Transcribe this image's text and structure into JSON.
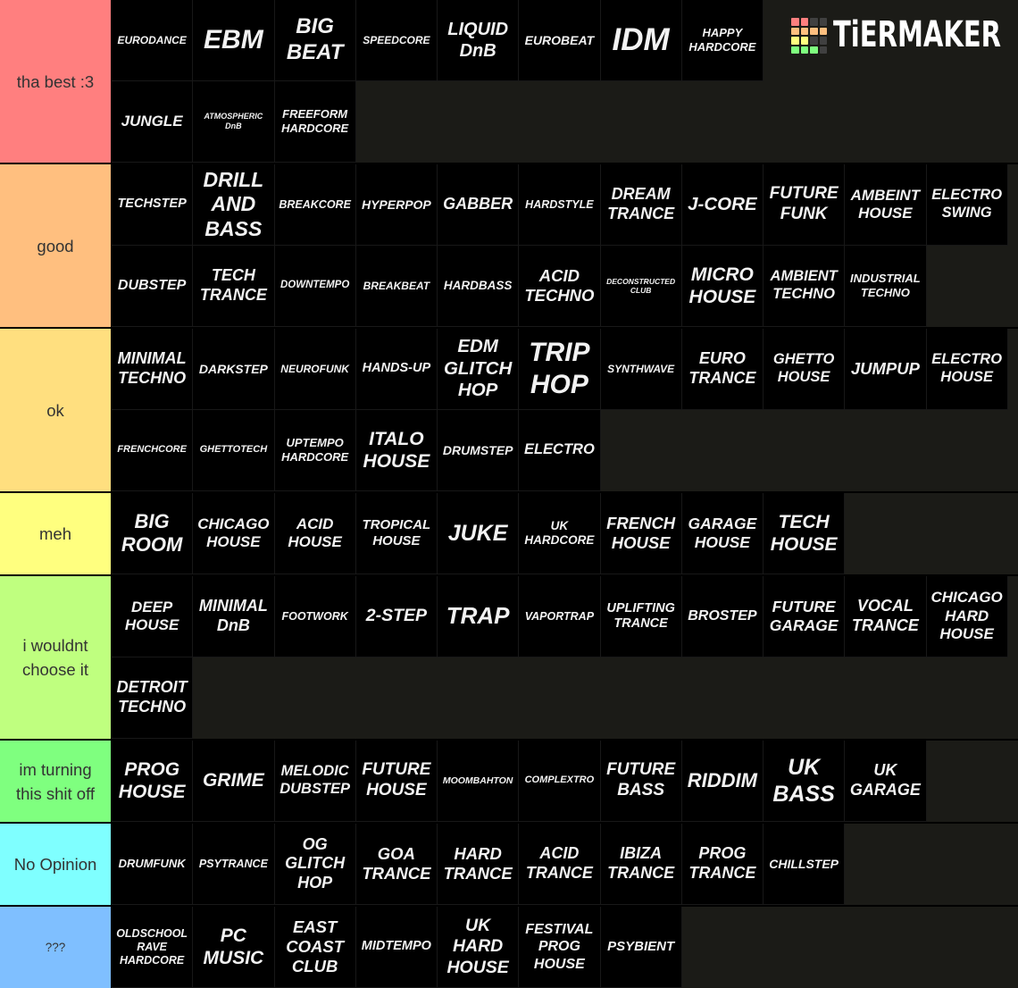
{
  "logo": {
    "text": "TiERMAKER",
    "squares": [
      "#ff7f7f",
      "#ff7f7f",
      "#404040",
      "#404040",
      "#ffbf7f",
      "#ffbf7f",
      "#ffbf7f",
      "#ffbf7f",
      "#ffff7f",
      "#ffff7f",
      "#404040",
      "#404040",
      "#7fff7f",
      "#7fff7f",
      "#7fff7f",
      "#404040"
    ]
  },
  "tiers": [
    {
      "label": "tha best :3",
      "color": "#ff7f7f",
      "items": [
        "EURODANCE",
        "EBM",
        "BIG\nBEAT",
        "SPEEDCORE",
        "LIQUID\nDnB",
        "EUROBEAT",
        "IDM",
        "HAPPY\nHARDCORE",
        "JUNGLE",
        "ATMOSPHERIC\nDnB",
        "FREEFORM\nHARDCORE"
      ]
    },
    {
      "label": "good",
      "color": "#ffbf7f",
      "items": [
        "TECHSTEP",
        "DRILL\nAND\nBASS",
        "BREAKCORE",
        "HYPERPOP",
        "GABBER",
        "HARDSTYLE",
        "DREAM\nTRANCE",
        "J-CORE",
        "FUTURE\nFUNK",
        "AMBEINT\nHOUSE",
        "ELECTRO\nSWING",
        "DUBSTEP",
        "TECH\nTRANCE",
        "DOWNTEMPO",
        "BREAKBEAT",
        "HARDBASS",
        "ACID\nTECHNO",
        "DECONSTRUCTED\nCLUB",
        "MICRO\nHOUSE",
        "AMBIENT\nTECHNO",
        "INDUSTRIAL\nTECHNO"
      ]
    },
    {
      "label": "ok",
      "color": "#ffdf7f",
      "items": [
        "MINIMAL\nTECHNO",
        "DARKSTEP",
        "NEUROFUNK",
        "HANDS-UP",
        "EDM\nGLITCH\nHOP",
        "TRIP\nHOP",
        "SYNTHWAVE",
        "EURO\nTRANCE",
        "GHETTO\nHOUSE",
        "JUMPUP",
        "ELECTRO\nHOUSE",
        "FRENCHCORE",
        "GHETTOTECH",
        "UPTEMPO\nHARDCORE",
        "ITALO\nHOUSE",
        "DRUMSTEP",
        "ELECTRO"
      ]
    },
    {
      "label": "meh",
      "color": "#ffff7f",
      "items": [
        "BIG\nROOM",
        "CHICAGO\nHOUSE",
        "ACID\nHOUSE",
        "TROPICAL\nHOUSE",
        "JUKE",
        "UK\nHARDCORE",
        "FRENCH\nHOUSE",
        "GARAGE\nHOUSE",
        "TECH\nHOUSE"
      ]
    },
    {
      "label": "i wouldnt choose it",
      "color": "#bfff7f",
      "items": [
        "DEEP\nHOUSE",
        "MINIMAL\nDnB",
        "FOOTWORK",
        "2-STEP",
        "TRAP",
        "VAPORTRAP",
        "UPLIFTING\nTRANCE",
        "BROSTEP",
        "FUTURE\nGARAGE",
        "VOCAL\nTRANCE",
        "CHICAGO\nHARD\nHOUSE",
        "DETROIT\nTECHNO"
      ]
    },
    {
      "label": "im turning this shit off",
      "color": "#7fff7f",
      "items": [
        "PROG\nHOUSE",
        "GRIME",
        "MELODIC\nDUBSTEP",
        "FUTURE\nHOUSE",
        "MOOMBAHTON",
        "COMPLEXTRO",
        "FUTURE\nBASS",
        "RIDDIM",
        "UK\nBASS",
        "UK\nGARAGE"
      ]
    },
    {
      "label": "No Opinion",
      "color": "#7fffff",
      "items": [
        "DRUMFUNK",
        "PSYTRANCE",
        "OG\nGLITCH\nHOP",
        "GOA\nTRANCE",
        "HARD\nTRANCE",
        "ACID\nTRANCE",
        "IBIZA\nTRANCE",
        "PROG\nTRANCE",
        "CHILLSTEP"
      ]
    },
    {
      "label": "???",
      "color": "#7fbfff",
      "items": [
        "OLDSCHOOL\nRAVE\nHARDCORE",
        "PC\nMUSIC",
        "EAST\nCOAST\nCLUB",
        "MIDTEMPO",
        "UK\nHARD\nHOUSE",
        "FESTIVAL\nPROG\nHOUSE",
        "PSYBIENT"
      ]
    }
  ]
}
